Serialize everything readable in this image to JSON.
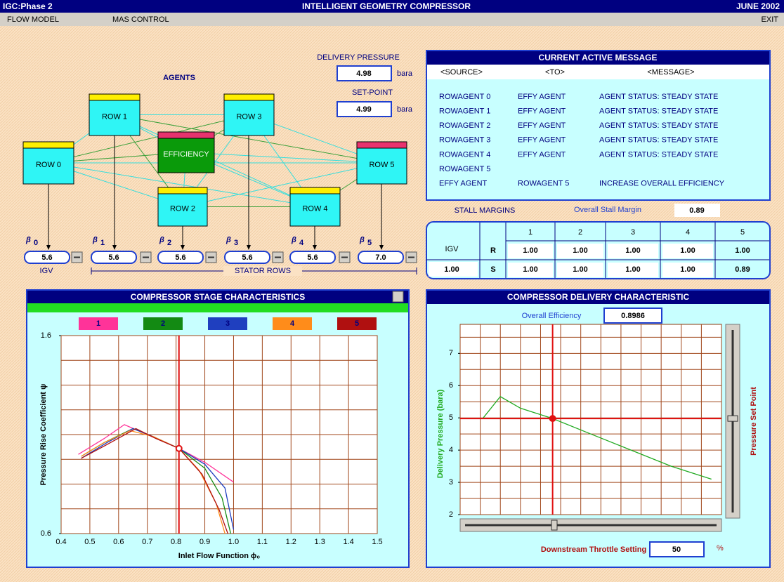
{
  "header": {
    "left": "IGC:Phase 2",
    "title": "INTELLIGENT GEOMETRY COMPRESSOR",
    "date": "JUNE 2002"
  },
  "menu": [
    "FLOW MODEL",
    "MAS CONTROL",
    "EXIT"
  ],
  "agents": {
    "title": "AGENTS",
    "nodes": [
      "ROW 0",
      "ROW 1",
      "ROW 2",
      "ROW 3",
      "ROW 4",
      "ROW 5",
      "EFFICIENCY"
    ]
  },
  "pressure": {
    "delivery_label": "DELIVERY PRESSURE",
    "delivery": "4.98",
    "unit": "bara",
    "setpoint_label": "SET-POINT",
    "setpoint": "4.99"
  },
  "betas": [
    {
      "symbol": "β",
      "sub": "0",
      "value": "5.6"
    },
    {
      "symbol": "β",
      "sub": "1",
      "value": "5.6"
    },
    {
      "symbol": "β",
      "sub": "2",
      "value": "5.6"
    },
    {
      "symbol": "β",
      "sub": "3",
      "value": "5.6"
    },
    {
      "symbol": "β",
      "sub": "4",
      "value": "5.6"
    },
    {
      "symbol": "β",
      "sub": "5",
      "value": "7.0"
    }
  ],
  "igv_label": "IGV",
  "stator_label": "STATOR ROWS",
  "messages": {
    "title": "CURRENT ACTIVE MESSAGE",
    "columns": [
      "<SOURCE>",
      "<TO>",
      "<MESSAGE>"
    ],
    "rows": [
      [
        "ROWAGENT 0",
        "EFFY AGENT",
        "AGENT STATUS: STEADY STATE"
      ],
      [
        "ROWAGENT 1",
        "EFFY AGENT",
        "AGENT STATUS: STEADY STATE"
      ],
      [
        "ROWAGENT 2",
        "EFFY AGENT",
        "AGENT STATUS: STEADY STATE"
      ],
      [
        "ROWAGENT 3",
        "EFFY AGENT",
        "AGENT STATUS: STEADY STATE"
      ],
      [
        "ROWAGENT 4",
        "EFFY AGENT",
        "AGENT STATUS: STEADY STATE"
      ],
      [
        "ROWAGENT 5"
      ],
      [
        "EFFY AGENT",
        "ROWAGENT 5",
        "INCREASE OVERALL EFFICIENCY"
      ]
    ]
  },
  "stall": {
    "label": "STALL MARGINS",
    "overall_label": "Overall Stall Margin",
    "overall": "0.89",
    "columns": [
      "1",
      "2",
      "3",
      "4",
      "5"
    ],
    "igv_label": "IGV",
    "igv": "1.00",
    "rows": [
      {
        "label": "R",
        "values": [
          "1.00",
          "1.00",
          "1.00",
          "1.00",
          "1.00"
        ]
      },
      {
        "label": "S",
        "values": [
          "1.00",
          "1.00",
          "1.00",
          "1.00",
          "0.89"
        ]
      }
    ]
  },
  "stage_chart": {
    "type": "line",
    "title": "COMPRESSOR STAGE CHARACTERISTICS",
    "xlabel": "Inlet Flow Function ϕ₀",
    "ylabel": "Pressure Rise Coefficient ψ",
    "xlim": [
      0.4,
      1.5
    ],
    "ylim": [
      0.6,
      1.6
    ],
    "xticks": [
      0.4,
      0.5,
      0.6,
      0.7,
      0.8,
      0.9,
      {
        "value": 1,
        "label": "1.0"
      },
      1.1,
      1.2,
      1.3,
      1.4,
      1.5
    ],
    "yticks": [
      0.6,
      1.6
    ],
    "ygrid": [
      0.6,
      0.725,
      0.85,
      0.975,
      1.1,
      1.225,
      1.35,
      1.475,
      1.6
    ],
    "operating_point": {
      "x": 0.81,
      "y": 1.03
    },
    "series": [
      {
        "name": "1",
        "color": "#ff3399",
        "x": [
          0.46,
          0.55,
          0.62,
          0.7,
          0.81,
          0.9,
          1.0
        ],
        "y": [
          1.0,
          1.08,
          1.15,
          1.1,
          1.03,
          0.96,
          0.86
        ]
      },
      {
        "name": "2",
        "color": "#138a13",
        "x": [
          0.47,
          0.55,
          0.65,
          0.72,
          0.81,
          0.9,
          0.96,
          0.99
        ],
        "y": [
          0.99,
          1.06,
          1.13,
          1.09,
          1.03,
          0.93,
          0.78,
          0.6
        ]
      },
      {
        "name": "3",
        "color": "#1f3fbf",
        "x": [
          0.47,
          0.56,
          0.65,
          0.72,
          0.81,
          0.9,
          0.97,
          1.0
        ],
        "y": [
          0.98,
          1.06,
          1.13,
          1.09,
          1.03,
          0.95,
          0.83,
          0.62
        ]
      },
      {
        "name": "4",
        "color": "#ff8c1a",
        "x": [
          0.47,
          0.55,
          0.64,
          0.72,
          0.81,
          0.88,
          0.94,
          0.97
        ],
        "y": [
          0.99,
          1.06,
          1.12,
          1.09,
          1.03,
          0.92,
          0.75,
          0.6
        ]
      },
      {
        "name": "5",
        "color": "#b01010",
        "x": [
          0.47,
          0.56,
          0.66,
          0.73,
          0.81,
          0.89,
          0.95,
          0.98
        ],
        "y": [
          0.98,
          1.05,
          1.13,
          1.08,
          1.03,
          0.9,
          0.72,
          0.6
        ]
      }
    ]
  },
  "delivery_chart": {
    "type": "line",
    "title": "COMPRESSOR DELIVERY CHARACTERISTIC",
    "efficiency_label": "Overall Efficiency",
    "efficiency": "0.8986",
    "ylabel": "Delivery Pressure (bara)",
    "y2label": "Pressure Set Point",
    "throttle_label": "Downstream Throttle Setting",
    "throttle": "50",
    "throttle_unit": "%",
    "xlim": [
      0,
      13
    ],
    "ylim": [
      2,
      7.9
    ],
    "yticks": [
      2,
      3,
      4,
      5,
      6,
      7
    ],
    "xgrid": [
      0,
      1,
      2,
      3,
      4,
      5,
      6,
      7,
      8,
      9,
      10,
      11,
      12,
      13
    ],
    "ygrid": [
      2,
      2.5,
      3,
      3.5,
      4,
      4.5,
      5,
      5.5,
      6,
      6.5,
      7,
      7.5
    ],
    "operating_point": {
      "x": 4.6,
      "y": 4.98
    },
    "series": [
      {
        "color": "#22aa22",
        "x": [
          1.15,
          2.0,
          3.0,
          4.6,
          6.5,
          8.5,
          10.5,
          12.5
        ],
        "y": [
          5.0,
          5.66,
          5.3,
          4.98,
          4.5,
          4.0,
          3.5,
          3.1
        ]
      }
    ]
  }
}
